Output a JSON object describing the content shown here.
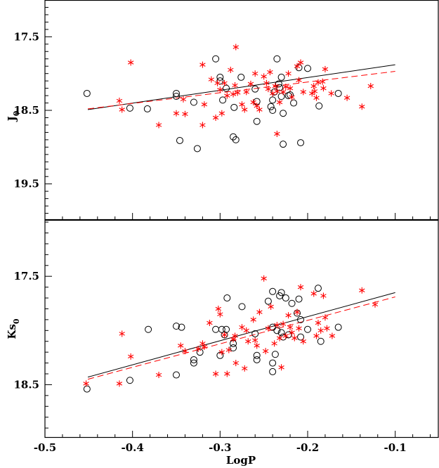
{
  "chart_data": [
    {
      "type": "scatter",
      "ylabel": "J",
      "ylabel_sub": "0",
      "xlabel": "",
      "xlim": [
        -0.5,
        -0.05
      ],
      "ylim": [
        19.99,
        17.0
      ],
      "y_inverted": true,
      "yticks": [
        17.5,
        18.5,
        19.5
      ],
      "ytick_labels": [
        "17.5",
        "18.5",
        "19.5"
      ],
      "xticks": [
        -0.5,
        -0.4,
        -0.3,
        -0.2,
        -0.1
      ],
      "series": [
        {
          "marker": "open-circle",
          "color": "#000000",
          "points": [
            [
              -0.452,
              18.27
            ],
            [
              -0.403,
              18.47
            ],
            [
              -0.383,
              18.48
            ],
            [
              -0.35,
              18.27
            ],
            [
              -0.35,
              18.31
            ],
            [
              -0.346,
              18.91
            ],
            [
              -0.33,
              18.39
            ],
            [
              -0.326,
              19.02
            ],
            [
              -0.305,
              17.8
            ],
            [
              -0.3,
              18.05
            ],
            [
              -0.3,
              18.1
            ],
            [
              -0.297,
              18.36
            ],
            [
              -0.293,
              18.2
            ],
            [
              -0.285,
              18.86
            ],
            [
              -0.284,
              18.46
            ],
            [
              -0.282,
              18.9
            ],
            [
              -0.276,
              18.05
            ],
            [
              -0.26,
              18.21
            ],
            [
              -0.258,
              18.38
            ],
            [
              -0.258,
              18.65
            ],
            [
              -0.242,
              18.45
            ],
            [
              -0.24,
              18.36
            ],
            [
              -0.24,
              18.5
            ],
            [
              -0.238,
              18.25
            ],
            [
              -0.235,
              17.8
            ],
            [
              -0.233,
              18.14
            ],
            [
              -0.232,
              18.19
            ],
            [
              -0.23,
              18.31
            ],
            [
              -0.23,
              18.05
            ],
            [
              -0.228,
              18.54
            ],
            [
              -0.228,
              18.96
            ],
            [
              -0.222,
              18.3
            ],
            [
              -0.22,
              18.29
            ],
            [
              -0.216,
              18.4
            ],
            [
              -0.21,
              17.92
            ],
            [
              -0.208,
              18.94
            ],
            [
              -0.2,
              17.93
            ],
            [
              -0.187,
              18.44
            ],
            [
              -0.165,
              18.27
            ]
          ]
        },
        {
          "marker": "asterisk",
          "color": "#ff0000",
          "points": [
            [
              -0.415,
              18.37
            ],
            [
              -0.412,
              18.49
            ],
            [
              -0.402,
              17.85
            ],
            [
              -0.37,
              18.7
            ],
            [
              -0.35,
              18.54
            ],
            [
              -0.342,
              18.35
            ],
            [
              -0.34,
              18.55
            ],
            [
              -0.32,
              17.88
            ],
            [
              -0.32,
              18.7
            ],
            [
              -0.318,
              18.42
            ],
            [
              -0.31,
              18.08
            ],
            [
              -0.305,
              18.6
            ],
            [
              -0.303,
              18.13
            ],
            [
              -0.3,
              18.22
            ],
            [
              -0.298,
              18.54
            ],
            [
              -0.295,
              18.13
            ],
            [
              -0.292,
              18.3
            ],
            [
              -0.288,
              17.95
            ],
            [
              -0.285,
              18.28
            ],
            [
              -0.283,
              18.16
            ],
            [
              -0.282,
              17.64
            ],
            [
              -0.28,
              18.26
            ],
            [
              -0.275,
              18.42
            ],
            [
              -0.272,
              18.49
            ],
            [
              -0.27,
              18.25
            ],
            [
              -0.265,
              18.14
            ],
            [
              -0.262,
              18.39
            ],
            [
              -0.26,
              18.0
            ],
            [
              -0.258,
              18.44
            ],
            [
              -0.255,
              18.49
            ],
            [
              -0.25,
              18.04
            ],
            [
              -0.247,
              18.13
            ],
            [
              -0.245,
              18.21
            ],
            [
              -0.243,
              17.98
            ],
            [
              -0.24,
              18.27
            ],
            [
              -0.237,
              18.17
            ],
            [
              -0.235,
              18.24
            ],
            [
              -0.235,
              18.82
            ],
            [
              -0.232,
              18.39
            ],
            [
              -0.228,
              18.25
            ],
            [
              -0.225,
              18.18
            ],
            [
              -0.222,
              18.0
            ],
            [
              -0.22,
              18.2
            ],
            [
              -0.218,
              18.32
            ],
            [
              -0.212,
              17.9
            ],
            [
              -0.21,
              18.09
            ],
            [
              -0.208,
              17.85
            ],
            [
              -0.205,
              18.25
            ],
            [
              -0.195,
              18.27
            ],
            [
              -0.193,
              18.17
            ],
            [
              -0.192,
              18.24
            ],
            [
              -0.19,
              18.33
            ],
            [
              -0.188,
              18.12
            ],
            [
              -0.183,
              18.11
            ],
            [
              -0.182,
              18.2
            ],
            [
              -0.18,
              17.94
            ],
            [
              -0.173,
              18.27
            ],
            [
              -0.155,
              18.33
            ],
            [
              -0.138,
              18.45
            ],
            [
              -0.128,
              18.17
            ]
          ]
        }
      ],
      "fits": [
        {
          "style": "solid",
          "color": "#000000",
          "x": [
            -0.451,
            -0.1
          ],
          "y": [
            18.49,
            17.88
          ]
        },
        {
          "style": "dashed",
          "color": "#ff0000",
          "x": [
            -0.451,
            -0.1
          ],
          "y": [
            18.48,
            17.97
          ]
        }
      ]
    },
    {
      "type": "scatter",
      "ylabel": "Ks",
      "ylabel_sub": "0",
      "xlabel": "LogP",
      "xlim": [
        -0.5,
        -0.05
      ],
      "ylim": [
        18.99,
        16.98
      ],
      "y_inverted": true,
      "yticks": [
        17.5,
        18.5
      ],
      "ytick_labels": [
        "17.5",
        "18.5"
      ],
      "xticks": [
        -0.5,
        -0.4,
        -0.3,
        -0.2,
        -0.1
      ],
      "xtick_labels": [
        "-0.5",
        "-0.4",
        "-0.3",
        "-0.2",
        "-0.1"
      ],
      "series": [
        {
          "marker": "open-circle",
          "color": "#000000",
          "points": [
            [
              -0.452,
              18.54
            ],
            [
              -0.403,
              18.46
            ],
            [
              -0.382,
              17.99
            ],
            [
              -0.35,
              17.96
            ],
            [
              -0.35,
              18.41
            ],
            [
              -0.344,
              17.97
            ],
            [
              -0.33,
              18.27
            ],
            [
              -0.33,
              18.3
            ],
            [
              -0.323,
              18.2
            ],
            [
              -0.305,
              17.99
            ],
            [
              -0.3,
              18.23
            ],
            [
              -0.298,
              17.99
            ],
            [
              -0.295,
              18.04
            ],
            [
              -0.293,
              17.99
            ],
            [
              -0.292,
              17.7
            ],
            [
              -0.285,
              18.12
            ],
            [
              -0.285,
              18.16
            ],
            [
              -0.275,
              17.78
            ],
            [
              -0.26,
              18.03
            ],
            [
              -0.258,
              18.23
            ],
            [
              -0.258,
              18.27
            ],
            [
              -0.245,
              17.73
            ],
            [
              -0.24,
              17.64
            ],
            [
              -0.24,
              17.97
            ],
            [
              -0.24,
              18.3
            ],
            [
              -0.24,
              18.38
            ],
            [
              -0.237,
              18.22
            ],
            [
              -0.235,
              18.0
            ],
            [
              -0.232,
              17.68
            ],
            [
              -0.23,
              17.65
            ],
            [
              -0.23,
              18.02
            ],
            [
              -0.228,
              18.06
            ],
            [
              -0.225,
              17.7
            ],
            [
              -0.222,
              18.04
            ],
            [
              -0.218,
              17.75
            ],
            [
              -0.212,
              17.84
            ],
            [
              -0.21,
              17.71
            ],
            [
              -0.208,
              17.9
            ],
            [
              -0.208,
              18.06
            ],
            [
              -0.2,
              17.99
            ],
            [
              -0.188,
              17.61
            ],
            [
              -0.185,
              18.1
            ],
            [
              -0.165,
              17.97
            ]
          ]
        },
        {
          "marker": "asterisk",
          "color": "#ff0000",
          "points": [
            [
              -0.453,
              18.49
            ],
            [
              -0.415,
              18.49
            ],
            [
              -0.412,
              18.03
            ],
            [
              -0.402,
              18.24
            ],
            [
              -0.37,
              18.41
            ],
            [
              -0.345,
              18.14
            ],
            [
              -0.34,
              18.19
            ],
            [
              -0.325,
              18.17
            ],
            [
              -0.32,
              18.12
            ],
            [
              -0.318,
              18.15
            ],
            [
              -0.312,
              17.93
            ],
            [
              -0.305,
              18.4
            ],
            [
              -0.302,
              17.8
            ],
            [
              -0.3,
              17.85
            ],
            [
              -0.298,
              18.2
            ],
            [
              -0.295,
              18.04
            ],
            [
              -0.292,
              18.4
            ],
            [
              -0.29,
              18.18
            ],
            [
              -0.285,
              18.08
            ],
            [
              -0.283,
              18.05
            ],
            [
              -0.282,
              18.3
            ],
            [
              -0.275,
              17.97
            ],
            [
              -0.272,
              18.35
            ],
            [
              -0.27,
              18.0
            ],
            [
              -0.268,
              18.1
            ],
            [
              -0.262,
              17.9
            ],
            [
              -0.26,
              18.09
            ],
            [
              -0.258,
              18.14
            ],
            [
              -0.255,
              17.83
            ],
            [
              -0.25,
              17.52
            ],
            [
              -0.248,
              18.19
            ],
            [
              -0.245,
              17.98
            ],
            [
              -0.242,
              17.78
            ],
            [
              -0.238,
              18.12
            ],
            [
              -0.235,
              17.95
            ],
            [
              -0.232,
              18.07
            ],
            [
              -0.23,
              18.34
            ],
            [
              -0.228,
              17.94
            ],
            [
              -0.225,
              18.05
            ],
            [
              -0.222,
              17.86
            ],
            [
              -0.22,
              17.97
            ],
            [
              -0.218,
              18.02
            ],
            [
              -0.215,
              18.07
            ],
            [
              -0.212,
              17.83
            ],
            [
              -0.21,
              17.98
            ],
            [
              -0.208,
              17.6
            ],
            [
              -0.205,
              18.1
            ],
            [
              -0.193,
              17.66
            ],
            [
              -0.19,
              18.05
            ],
            [
              -0.188,
              17.93
            ],
            [
              -0.185,
              18.0
            ],
            [
              -0.182,
              17.68
            ],
            [
              -0.18,
              17.88
            ],
            [
              -0.178,
              17.98
            ],
            [
              -0.172,
              18.05
            ],
            [
              -0.138,
              17.63
            ],
            [
              -0.123,
              17.76
            ]
          ]
        }
      ],
      "fits": [
        {
          "style": "solid",
          "color": "#000000",
          "x": [
            -0.451,
            -0.1
          ],
          "y": [
            18.43,
            17.65
          ]
        },
        {
          "style": "dashed",
          "color": "#ff0000",
          "x": [
            -0.451,
            -0.1
          ],
          "y": [
            18.45,
            17.69
          ]
        }
      ]
    }
  ]
}
